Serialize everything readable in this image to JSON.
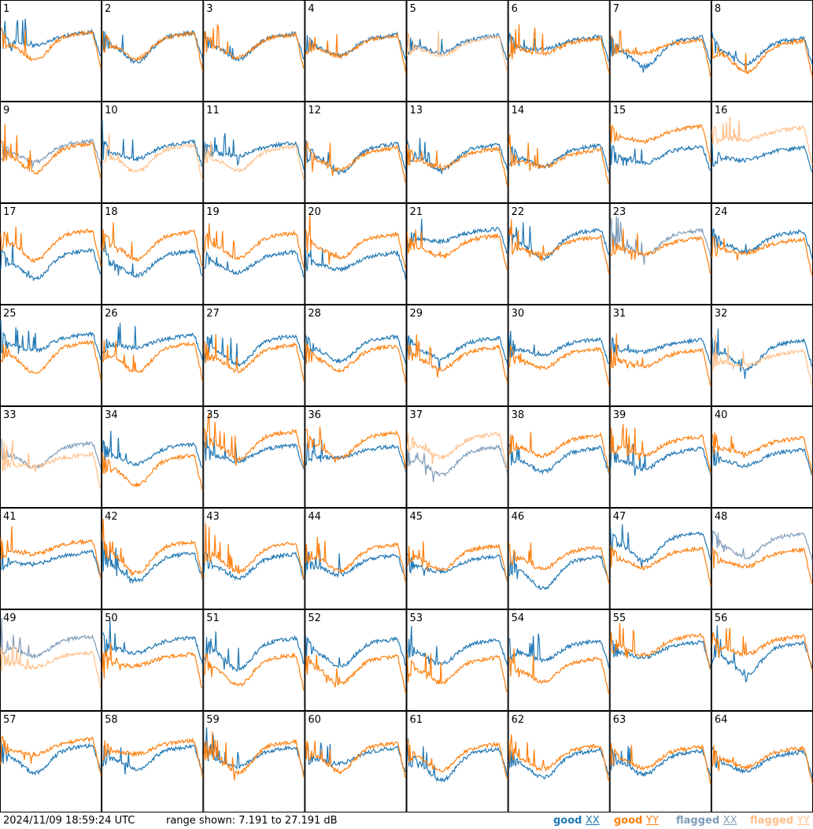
{
  "chart_data": {
    "type": "line",
    "title": "",
    "ylim": [
      7.191,
      27.191
    ],
    "y_unit": "dB",
    "grid": {
      "rows": 8,
      "cols": 8
    },
    "panel_labels": [
      "1",
      "2",
      "3",
      "4",
      "5",
      "6",
      "7",
      "8",
      "9",
      "10",
      "11",
      "12",
      "13",
      "14",
      "15",
      "16",
      "17",
      "18",
      "19",
      "20",
      "21",
      "22",
      "23",
      "24",
      "25",
      "26",
      "27",
      "28",
      "29",
      "30",
      "31",
      "32",
      "33",
      "34",
      "35",
      "36",
      "37",
      "38",
      "39",
      "40",
      "41",
      "42",
      "43",
      "44",
      "45",
      "46",
      "47",
      "48",
      "49",
      "50",
      "51",
      "52",
      "53",
      "54",
      "55",
      "56",
      "57",
      "58",
      "59",
      "60",
      "61",
      "62",
      "63",
      "64"
    ],
    "flagged_xx_panels": [
      9,
      23,
      33,
      37,
      48,
      49
    ],
    "flagged_yy_panels": [
      5,
      10,
      11,
      16,
      32,
      33,
      37,
      49
    ],
    "series": [
      {
        "name": "good XX",
        "color": "#1f77b4"
      },
      {
        "name": "good YY",
        "color": "#ff7f0e"
      },
      {
        "name": "flagged XX",
        "color": "#7f9db9"
      },
      {
        "name": "flagged YY",
        "color": "#ffc08a"
      }
    ]
  },
  "footer": {
    "timestamp": "2024/11/09 18:59:24 UTC",
    "range": "range shown: 7.191 to 27.191 dB",
    "legend": [
      {
        "word": "good",
        "pol": "XX",
        "color": "#1f77b4"
      },
      {
        "word": "good",
        "pol": "YY",
        "color": "#ff7f0e"
      },
      {
        "word": "flagged",
        "pol": "XX",
        "color": "#7f9db9"
      },
      {
        "word": "flagged",
        "pol": "YY",
        "color": "#ffc08a"
      }
    ]
  }
}
